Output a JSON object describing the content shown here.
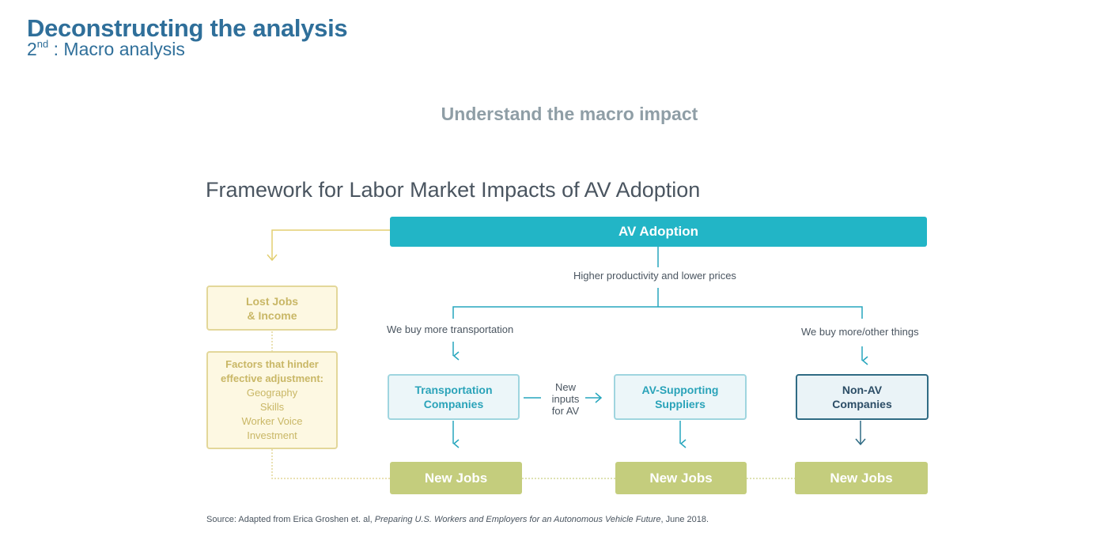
{
  "header": {
    "title": "Deconstructing the analysis",
    "subtitle_ordinal": "2",
    "subtitle_sup": "nd",
    "subtitle_rest": " : Macro analysis"
  },
  "heading": "Understand the macro impact",
  "diagram": {
    "title": "Framework for Labor Market Impacts of AV Adoption",
    "av_adoption": "AV Adoption",
    "higher_productivity": "Higher productivity and lower prices",
    "buy_transport": "We buy more transportation",
    "buy_other": "We buy more/other things",
    "lost_jobs": [
      "Lost Jobs",
      "& Income"
    ],
    "factors": {
      "heading": [
        "Factors that hinder",
        "effective adjustment:"
      ],
      "items": [
        "Geography",
        "Skills",
        "Worker Voice",
        "Investment"
      ]
    },
    "transport_companies": [
      "Transportation",
      "Companies"
    ],
    "new_inputs": [
      "New",
      "inputs",
      "for AV"
    ],
    "av_suppliers": [
      "AV-Supporting",
      "Suppliers"
    ],
    "non_av": [
      "Non-AV",
      "Companies"
    ],
    "new_jobs": "New Jobs"
  },
  "source": {
    "prefix": "Source: Adapted from Erica Groshen et. al, ",
    "title": "Preparing U.S. Workers and Employers for an Autonomous Vehicle Future",
    "suffix": ", June 2018."
  },
  "colors": {
    "title_blue": "#2f6f9a",
    "teal": "#22b5c6",
    "yellow_border": "#e3d79a",
    "green": "#c4cd7d",
    "navy": "#2f6b84"
  }
}
